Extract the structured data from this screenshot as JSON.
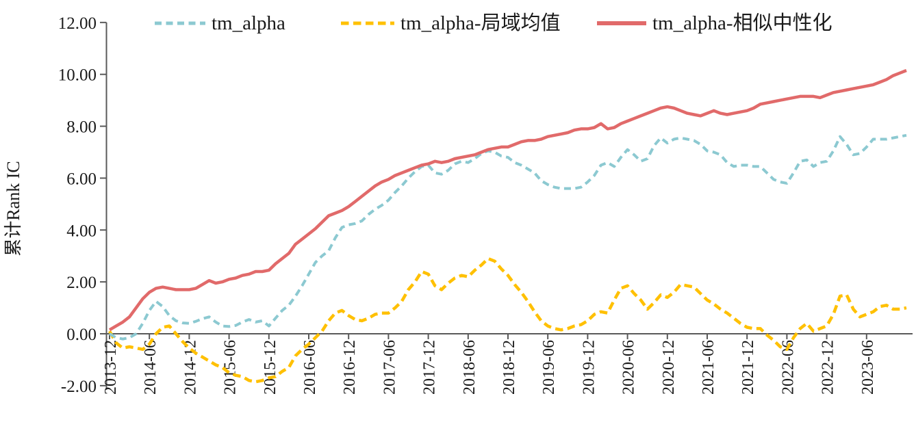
{
  "chart_data": {
    "type": "line",
    "title": "",
    "ylabel": "累计Rank IC",
    "ylim": [
      -2,
      12
    ],
    "y_ticks": [
      "12.00",
      "10.00",
      "8.00",
      "6.00",
      "4.00",
      "2.00",
      "0.00",
      "-2.00"
    ],
    "x_start": "2013-12",
    "x_frequency": "monthly",
    "x_tick_every": 6,
    "x_tick_labels": [
      "2013-12",
      "2014-06",
      "2014-12",
      "2015-06",
      "2015-12",
      "2016-06",
      "2016-12",
      "2017-06",
      "2017-12",
      "2018-06",
      "2018-12",
      "2019-06",
      "2019-12",
      "2020-06",
      "2020-12",
      "2021-06",
      "2021-12",
      "2022-06",
      "2022-12",
      "2023-06"
    ],
    "legend_position": "top",
    "grid": false,
    "colors": {
      "axis": "#595959",
      "text": "#1a1a1a"
    },
    "series": [
      {
        "name": "tm_alpha",
        "color": "#8CC9D1",
        "style": "dashed",
        "values": [
          0.0,
          -0.15,
          -0.2,
          -0.15,
          0.0,
          0.4,
          0.9,
          1.25,
          1.05,
          0.7,
          0.5,
          0.42,
          0.4,
          0.48,
          0.58,
          0.65,
          0.45,
          0.3,
          0.28,
          0.32,
          0.45,
          0.55,
          0.45,
          0.5,
          0.3,
          0.6,
          0.9,
          1.1,
          1.45,
          1.85,
          2.3,
          2.75,
          3.0,
          3.2,
          3.7,
          4.1,
          4.2,
          4.25,
          4.35,
          4.6,
          4.8,
          4.95,
          5.15,
          5.45,
          5.7,
          6.0,
          6.25,
          6.45,
          6.5,
          6.2,
          6.15,
          6.3,
          6.55,
          6.65,
          6.6,
          6.75,
          6.95,
          7.05,
          7.0,
          6.85,
          6.8,
          6.6,
          6.5,
          6.35,
          6.2,
          5.9,
          5.75,
          5.65,
          5.6,
          5.6,
          5.6,
          5.65,
          5.85,
          6.1,
          6.5,
          6.6,
          6.45,
          6.8,
          7.1,
          6.9,
          6.65,
          6.75,
          7.25,
          7.55,
          7.35,
          7.5,
          7.55,
          7.5,
          7.45,
          7.3,
          7.05,
          7.0,
          6.9,
          6.6,
          6.45,
          6.5,
          6.5,
          6.45,
          6.45,
          6.2,
          5.95,
          5.85,
          5.8,
          6.2,
          6.65,
          6.7,
          6.45,
          6.6,
          6.65,
          7.05,
          7.6,
          7.3,
          6.9,
          6.95,
          7.2,
          7.5,
          7.5,
          7.5,
          7.55,
          7.6,
          7.65
        ]
      },
      {
        "name": "tm_alpha-局域均值",
        "color": "#FFC000",
        "style": "dashed",
        "values": [
          0.1,
          -0.35,
          -0.55,
          -0.5,
          -0.55,
          -0.6,
          -0.4,
          0.0,
          0.25,
          0.3,
          0.0,
          -0.3,
          -0.55,
          -0.75,
          -0.9,
          -1.05,
          -1.2,
          -1.3,
          -1.5,
          -1.6,
          -1.65,
          -1.8,
          -1.85,
          -1.8,
          -1.7,
          -1.65,
          -1.45,
          -1.3,
          -0.85,
          -0.6,
          -0.4,
          -0.15,
          0.1,
          0.5,
          0.8,
          0.9,
          0.7,
          0.55,
          0.5,
          0.6,
          0.75,
          0.8,
          0.8,
          1.0,
          1.25,
          1.7,
          2.0,
          2.4,
          2.3,
          1.85,
          1.7,
          1.95,
          2.15,
          2.25,
          2.2,
          2.45,
          2.65,
          2.9,
          2.8,
          2.5,
          2.25,
          1.9,
          1.6,
          1.25,
          0.85,
          0.5,
          0.3,
          0.2,
          0.15,
          0.2,
          0.3,
          0.35,
          0.5,
          0.75,
          0.85,
          0.8,
          1.3,
          1.75,
          1.85,
          1.55,
          1.3,
          0.95,
          1.2,
          1.5,
          1.4,
          1.6,
          1.9,
          1.85,
          1.8,
          1.55,
          1.3,
          1.15,
          0.95,
          0.8,
          0.6,
          0.4,
          0.25,
          0.2,
          0.2,
          -0.05,
          -0.25,
          -0.5,
          -0.6,
          -0.15,
          0.2,
          0.4,
          0.1,
          0.2,
          0.3,
          0.75,
          1.45,
          1.5,
          0.95,
          0.65,
          0.75,
          0.85,
          1.05,
          1.1,
          0.95,
          0.95,
          1.0
        ]
      },
      {
        "name": "tm_alpha-相似中性化",
        "color": "#E16A6A",
        "style": "solid",
        "values": [
          0.15,
          0.3,
          0.45,
          0.65,
          1.0,
          1.35,
          1.6,
          1.75,
          1.8,
          1.75,
          1.7,
          1.7,
          1.7,
          1.75,
          1.9,
          2.05,
          1.95,
          2.0,
          2.1,
          2.15,
          2.25,
          2.3,
          2.4,
          2.4,
          2.45,
          2.7,
          2.9,
          3.1,
          3.45,
          3.65,
          3.85,
          4.05,
          4.3,
          4.55,
          4.65,
          4.75,
          4.9,
          5.1,
          5.3,
          5.5,
          5.7,
          5.85,
          5.95,
          6.1,
          6.2,
          6.3,
          6.4,
          6.5,
          6.55,
          6.65,
          6.6,
          6.65,
          6.75,
          6.8,
          6.85,
          6.9,
          7.0,
          7.1,
          7.15,
          7.2,
          7.2,
          7.3,
          7.4,
          7.45,
          7.45,
          7.5,
          7.6,
          7.65,
          7.7,
          7.75,
          7.85,
          7.9,
          7.9,
          7.95,
          8.1,
          7.9,
          7.95,
          8.1,
          8.2,
          8.3,
          8.4,
          8.5,
          8.6,
          8.7,
          8.75,
          8.7,
          8.6,
          8.5,
          8.45,
          8.4,
          8.5,
          8.6,
          8.5,
          8.45,
          8.5,
          8.55,
          8.6,
          8.7,
          8.85,
          8.9,
          8.95,
          9.0,
          9.05,
          9.1,
          9.15,
          9.15,
          9.15,
          9.1,
          9.2,
          9.3,
          9.35,
          9.4,
          9.45,
          9.5,
          9.55,
          9.6,
          9.7,
          9.8,
          9.95,
          10.05,
          10.15
        ]
      }
    ]
  }
}
